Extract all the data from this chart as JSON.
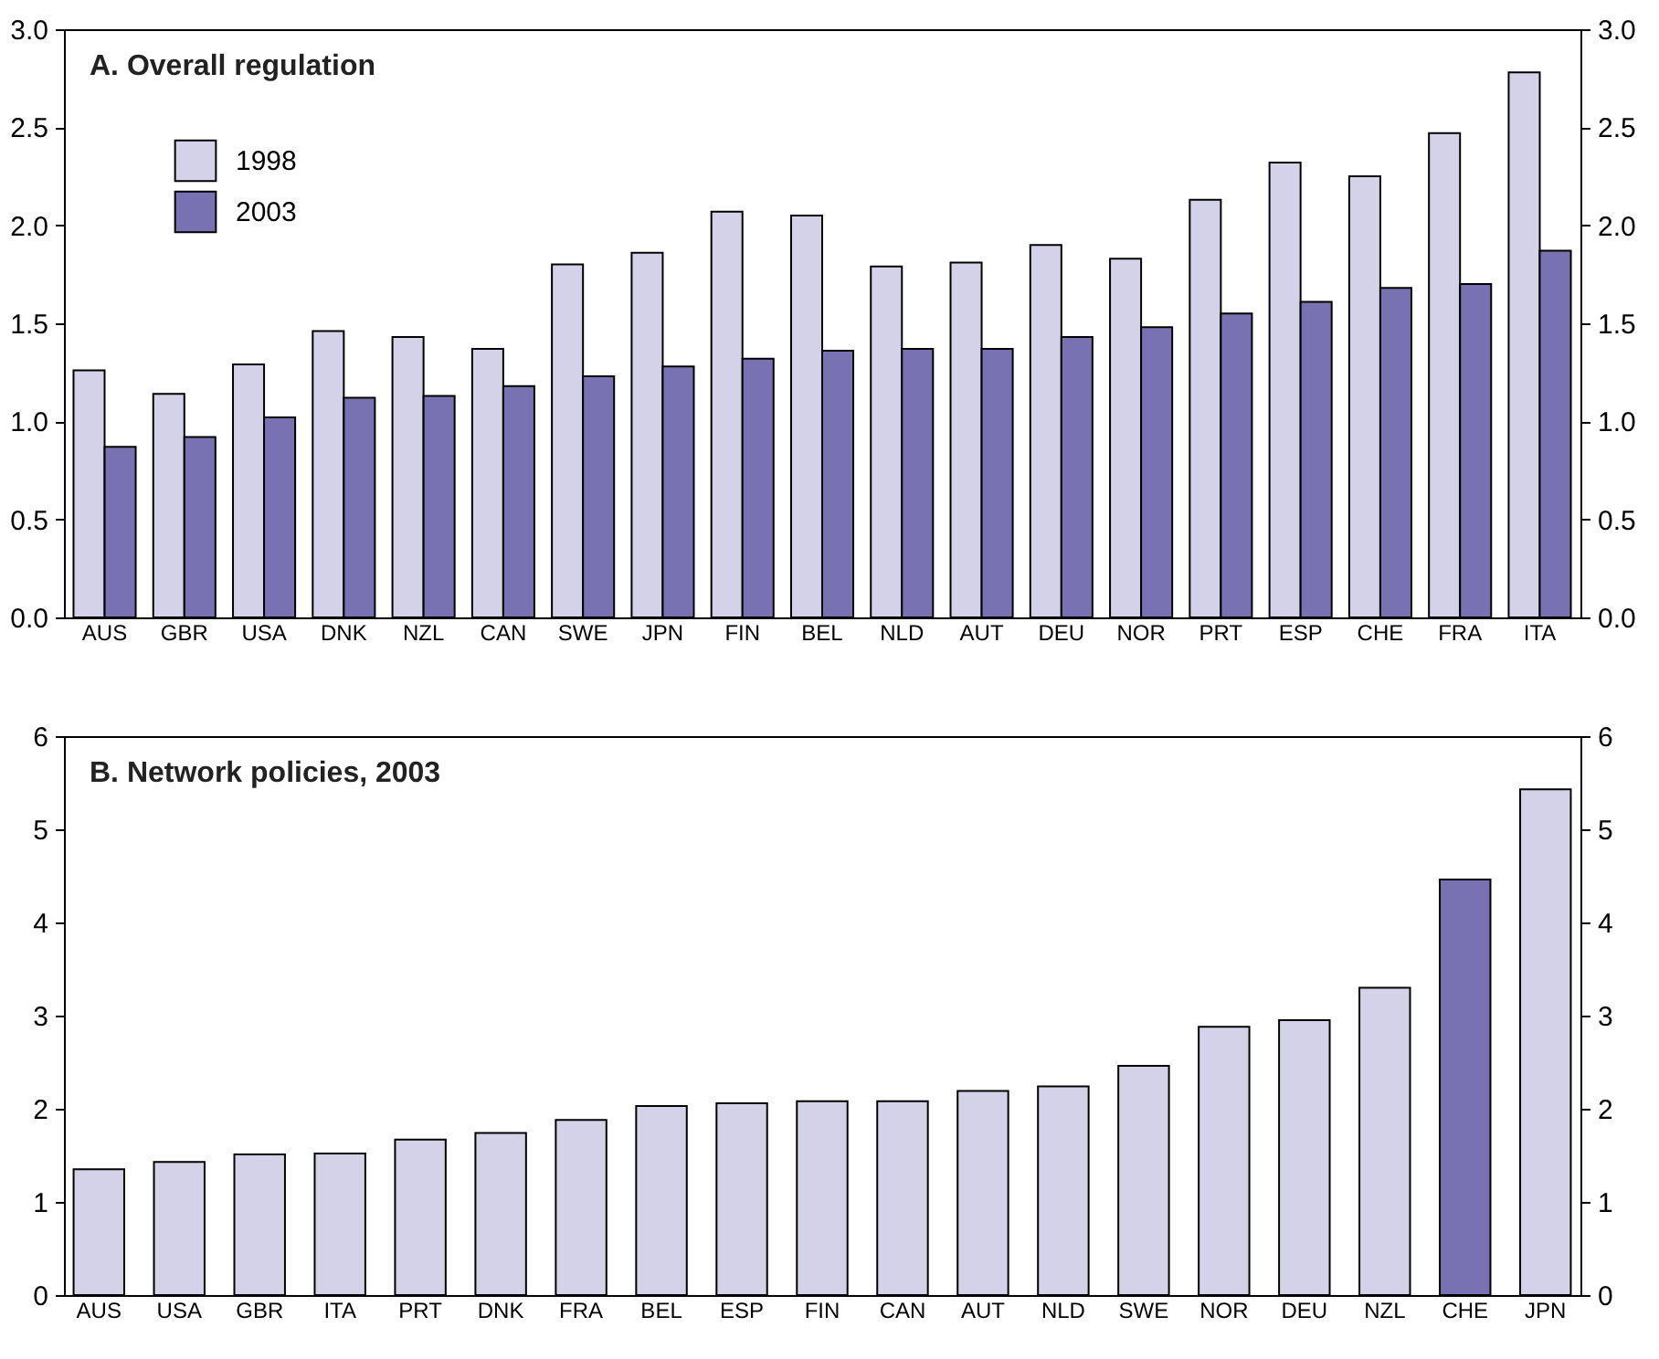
{
  "chart_data": [
    {
      "type": "bar",
      "title": "A. Overall regulation",
      "categories": [
        "AUS",
        "GBR",
        "USA",
        "DNK",
        "NZL",
        "CAN",
        "SWE",
        "JPN",
        "FIN",
        "BEL",
        "NLD",
        "AUT",
        "DEU",
        "NOR",
        "PRT",
        "ESP",
        "CHE",
        "FRA",
        "ITA"
      ],
      "series": [
        {
          "name": "1998",
          "color": "#d4d2e8",
          "values": [
            1.26,
            1.14,
            1.29,
            1.46,
            1.43,
            1.37,
            1.8,
            1.86,
            2.07,
            2.05,
            1.79,
            1.81,
            1.9,
            1.83,
            2.13,
            2.32,
            2.25,
            2.47,
            2.78
          ]
        },
        {
          "name": "2003",
          "color": "#7872b2",
          "values": [
            0.87,
            0.92,
            1.02,
            1.12,
            1.13,
            1.18,
            1.23,
            1.28,
            1.32,
            1.36,
            1.37,
            1.37,
            1.43,
            1.48,
            1.55,
            1.61,
            1.68,
            1.7,
            1.87
          ]
        }
      ],
      "ylim": [
        0,
        3
      ],
      "yticks": [
        {
          "value": 0,
          "label": "0.0"
        },
        {
          "value": 0.5,
          "label": "0.5"
        },
        {
          "value": 1,
          "label": "1.0"
        },
        {
          "value": 1.5,
          "label": "1.5"
        },
        {
          "value": 2,
          "label": "2.0"
        },
        {
          "value": 2.5,
          "label": "2.5"
        },
        {
          "value": 3,
          "label": "3.0"
        }
      ],
      "y2lim": [
        0,
        3
      ],
      "y2ticks": [
        {
          "value": 0,
          "label": "0.0"
        },
        {
          "value": 0.5,
          "label": "0.5"
        },
        {
          "value": 1,
          "label": "1.0"
        },
        {
          "value": 1.5,
          "label": "1.5"
        },
        {
          "value": 2,
          "label": "2.0"
        },
        {
          "value": 2.5,
          "label": "2.5"
        },
        {
          "value": 3,
          "label": "3.0"
        }
      ],
      "legend": "top left",
      "grid": false
    },
    {
      "type": "bar",
      "title": "B. Network policies, 2003",
      "categories": [
        "AUS",
        "USA",
        "GBR",
        "ITA",
        "PRT",
        "DNK",
        "FRA",
        "BEL",
        "ESP",
        "FIN",
        "CAN",
        "AUT",
        "NLD",
        "SWE",
        "NOR",
        "DEU",
        "NZL",
        "CHE",
        "JPN"
      ],
      "values": [
        1.35,
        1.43,
        1.51,
        1.52,
        1.67,
        1.74,
        1.88,
        2.03,
        2.06,
        2.08,
        2.08,
        2.19,
        2.24,
        2.46,
        2.88,
        2.95,
        3.3,
        4.46,
        5.43
      ],
      "colors": [
        "#d4d2e8",
        "#d4d2e8",
        "#d4d2e8",
        "#d4d2e8",
        "#d4d2e8",
        "#d4d2e8",
        "#d4d2e8",
        "#d4d2e8",
        "#d4d2e8",
        "#d4d2e8",
        "#d4d2e8",
        "#d4d2e8",
        "#d4d2e8",
        "#d4d2e8",
        "#d4d2e8",
        "#d4d2e8",
        "#d4d2e8",
        "#7872b2",
        "#d4d2e8"
      ],
      "ylim": [
        0,
        6
      ],
      "yticks": [
        0,
        1,
        2,
        3,
        4,
        5,
        6
      ],
      "y2lim": [
        0,
        6
      ],
      "y2ticks": [
        0,
        1,
        2,
        3,
        4,
        5,
        6
      ],
      "grid": false
    }
  ]
}
